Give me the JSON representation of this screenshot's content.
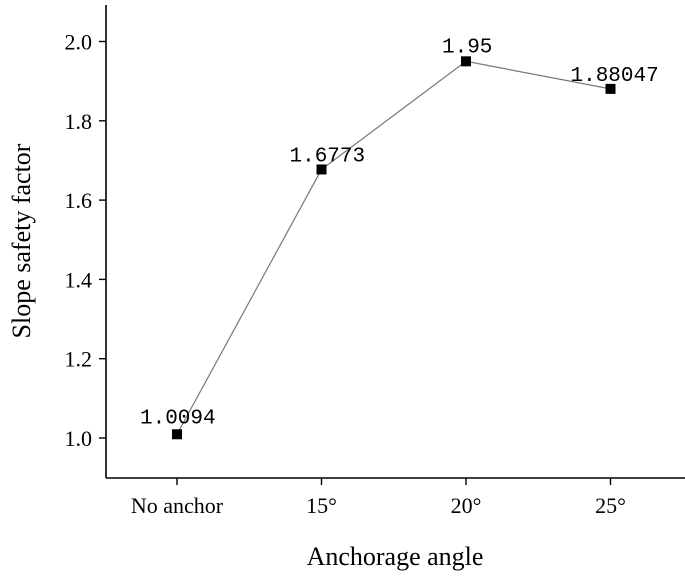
{
  "chart_data": {
    "type": "line",
    "title": "",
    "xlabel": "Anchorage angle",
    "ylabel": "Slope safety factor",
    "categories": [
      "No anchor",
      "15°",
      "20°",
      "25°"
    ],
    "series": [
      {
        "values": [
          1.0094,
          1.6773,
          1.95,
          1.88047
        ],
        "labels": [
          "1.0094",
          "1.6773",
          "1.95",
          "1.88047"
        ]
      }
    ],
    "ylim": [
      0.9,
      2.1
    ],
    "yticks": [
      "1.0",
      "1.2",
      "1.4",
      "1.6",
      "1.8",
      "2.0"
    ],
    "grid": false,
    "legend": "none",
    "colors": {
      "line": "#777777",
      "marker": "#000000",
      "axis": "#000000"
    }
  }
}
